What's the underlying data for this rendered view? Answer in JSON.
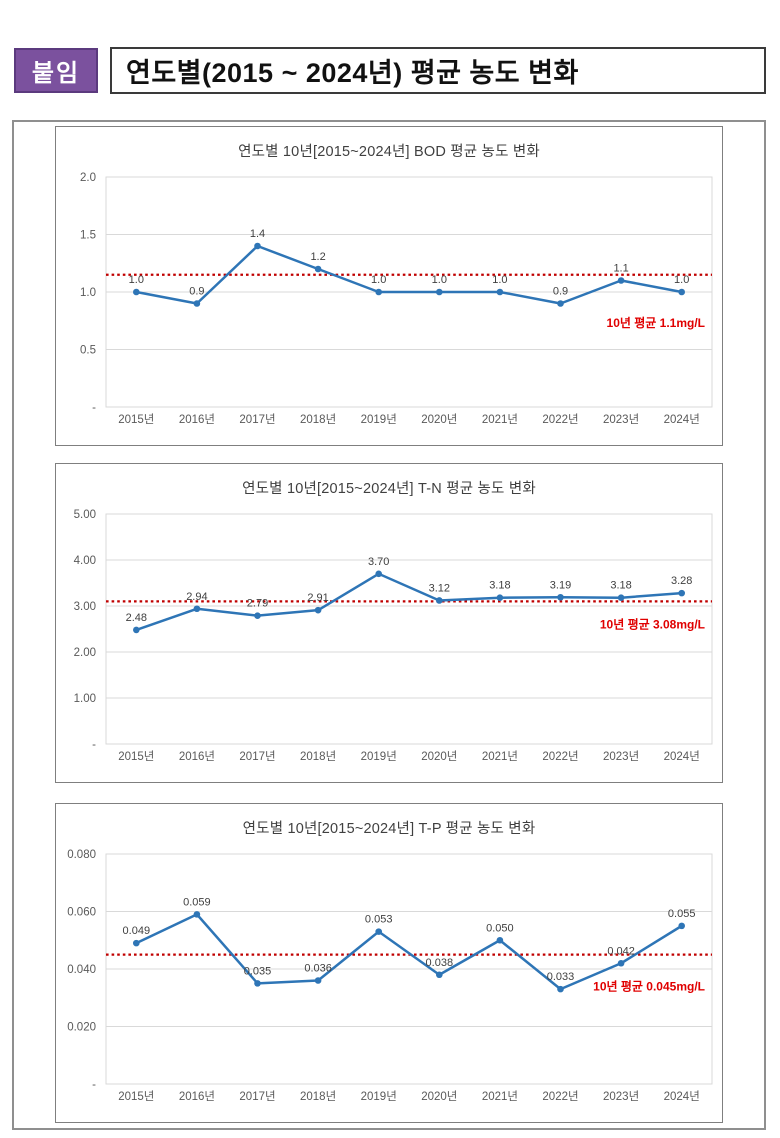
{
  "page": {
    "badge": "붙임",
    "title": "연도별(2015 ~ 2024년) 평균 농도 변화"
  },
  "style": {
    "badge_bg": "#7B519E",
    "line_color": "#2E75B6",
    "marker_color": "#2E75B6",
    "mean_line_color": "#C00000",
    "mean_label_color": "#E00000",
    "grid_color": "#D9D9D9",
    "tick_label_color": "#595959",
    "data_label_color": "#404040"
  },
  "chart_data": [
    {
      "type": "line",
      "title": "연도별 10년[2015~2024년] BOD 평균 농도 변화",
      "categories": [
        "2015년",
        "2016년",
        "2017년",
        "2018년",
        "2019년",
        "2020년",
        "2021년",
        "2022년",
        "2023년",
        "2024년"
      ],
      "values": [
        1.0,
        0.9,
        1.4,
        1.2,
        1.0,
        1.0,
        1.0,
        0.9,
        1.1,
        1.0
      ],
      "value_labels": [
        "1.0",
        "0.9",
        "1.4",
        "1.2",
        "1.0",
        "1.0",
        "1.0",
        "0.9",
        "1.1",
        "1.0"
      ],
      "ylim": [
        0,
        2.0
      ],
      "yticks": [
        {
          "v": 2.0,
          "t": "2.0"
        },
        {
          "v": 1.5,
          "t": "1.5"
        },
        {
          "v": 1.0,
          "t": "1.0"
        },
        {
          "v": 0.5,
          "t": "0.5"
        },
        {
          "v": 0.0,
          "t": "-"
        }
      ],
      "mean_line": {
        "value": 1.15,
        "label": "10년 평균 1.1mg/L"
      },
      "grid": true,
      "legend": "none",
      "xlabel": "",
      "ylabel": ""
    },
    {
      "type": "line",
      "title": "연도별 10년[2015~2024년] T-N 평균 농도 변화",
      "categories": [
        "2015년",
        "2016년",
        "2017년",
        "2018년",
        "2019년",
        "2020년",
        "2021년",
        "2022년",
        "2023년",
        "2024년"
      ],
      "values": [
        2.48,
        2.94,
        2.79,
        2.91,
        3.7,
        3.12,
        3.18,
        3.19,
        3.18,
        3.28
      ],
      "value_labels": [
        "2.48",
        "2.94",
        "2.79",
        "2.91",
        "3.70",
        "3.12",
        "3.18",
        "3.19",
        "3.18",
        "3.28"
      ],
      "ylim": [
        0,
        5.0
      ],
      "yticks": [
        {
          "v": 5.0,
          "t": "5.00"
        },
        {
          "v": 4.0,
          "t": "4.00"
        },
        {
          "v": 3.0,
          "t": "3.00"
        },
        {
          "v": 2.0,
          "t": "2.00"
        },
        {
          "v": 1.0,
          "t": "1.00"
        },
        {
          "v": 0.0,
          "t": "-"
        }
      ],
      "mean_line": {
        "value": 3.1,
        "label": "10년 평균 3.08mg/L"
      },
      "grid": true,
      "legend": "none",
      "xlabel": "",
      "ylabel": ""
    },
    {
      "type": "line",
      "title": "연도별 10년[2015~2024년] T-P 평균 농도 변화",
      "categories": [
        "2015년",
        "2016년",
        "2017년",
        "2018년",
        "2019년",
        "2020년",
        "2021년",
        "2022년",
        "2023년",
        "2024년"
      ],
      "values": [
        0.049,
        0.059,
        0.035,
        0.036,
        0.053,
        0.038,
        0.05,
        0.033,
        0.042,
        0.055
      ],
      "value_labels": [
        "0.049",
        "0.059",
        "0.035",
        "0.036",
        "0.053",
        "0.038",
        "0.050",
        "0.033",
        "0.042",
        "0.055"
      ],
      "ylim": [
        0,
        0.08
      ],
      "yticks": [
        {
          "v": 0.08,
          "t": "0.080"
        },
        {
          "v": 0.06,
          "t": "0.060"
        },
        {
          "v": 0.04,
          "t": "0.040"
        },
        {
          "v": 0.02,
          "t": "0.020"
        },
        {
          "v": 0.0,
          "t": "-"
        }
      ],
      "mean_line": {
        "value": 0.045,
        "label": "10년 평균 0.045mg/L"
      },
      "grid": true,
      "legend": "none",
      "xlabel": "",
      "ylabel": ""
    }
  ]
}
